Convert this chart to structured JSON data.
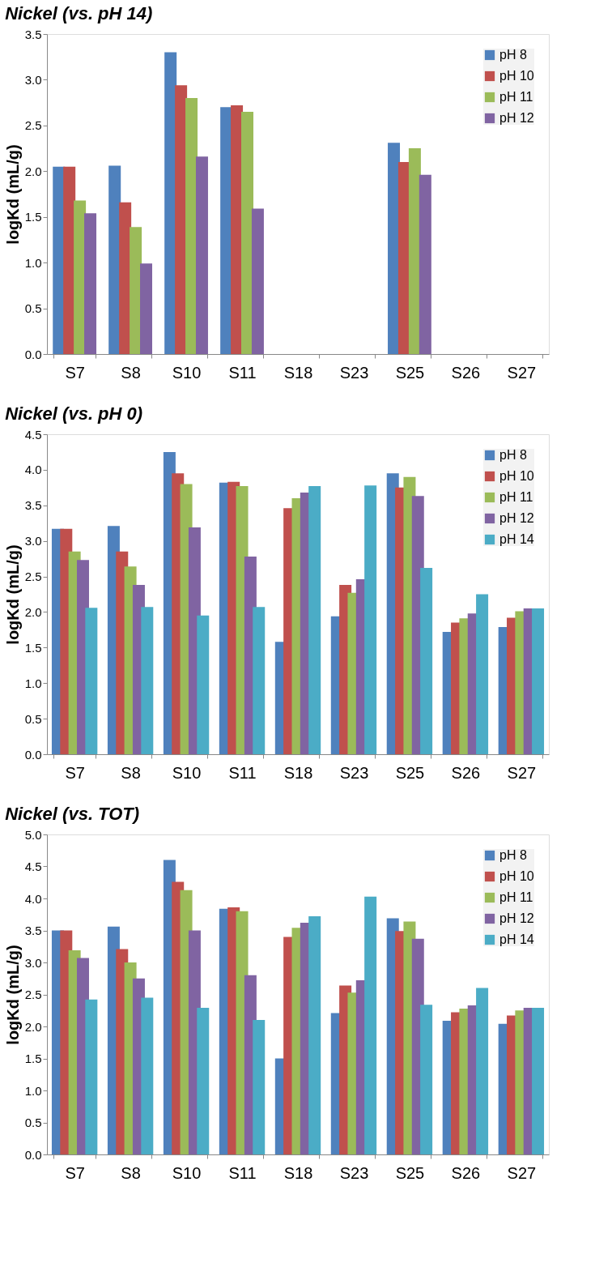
{
  "chart_data": [
    {
      "type": "bar",
      "title": "Nickel (vs. pH 14)",
      "ylabel": "logKd (mL/g)",
      "categories": [
        "S7",
        "S8",
        "S10",
        "S11",
        "S18",
        "S23",
        "S25",
        "S26",
        "S27"
      ],
      "series": [
        {
          "name": "pH 8",
          "color": "#4f81bd",
          "values": [
            2.05,
            2.06,
            3.3,
            2.7,
            null,
            null,
            2.31,
            null,
            null
          ]
        },
        {
          "name": "pH 10",
          "color": "#c0504d",
          "values": [
            2.05,
            1.66,
            2.94,
            2.72,
            null,
            null,
            2.1,
            null,
            null
          ]
        },
        {
          "name": "pH 11",
          "color": "#9bbb59",
          "values": [
            1.68,
            1.39,
            2.8,
            2.65,
            null,
            null,
            2.25,
            null,
            null
          ]
        },
        {
          "name": "pH 12",
          "color": "#8064a2",
          "values": [
            1.54,
            0.99,
            2.16,
            1.59,
            null,
            null,
            1.96,
            null,
            null
          ]
        }
      ],
      "ylim": [
        0,
        3.5
      ],
      "yticks": [
        {
          "value": 0,
          "label": "0.0"
        },
        0.5,
        {
          "value": 1,
          "label": "1.0"
        },
        1.5,
        {
          "value": 2,
          "label": "2.0"
        },
        2.5,
        {
          "value": 3,
          "label": "3.0"
        },
        3.5
      ],
      "legend": "top right",
      "grid": false
    },
    {
      "type": "bar",
      "title": "Nickel (vs. pH 0)",
      "ylabel": "logKd (mL/g)",
      "categories": [
        "S7",
        "S8",
        "S10",
        "S11",
        "S18",
        "S23",
        "S25",
        "S26",
        "S27"
      ],
      "series": [
        {
          "name": "pH 8",
          "color": "#4f81bd",
          "values": [
            3.17,
            3.21,
            4.25,
            3.82,
            1.58,
            1.94,
            3.95,
            1.72,
            1.79
          ]
        },
        {
          "name": "pH 10",
          "color": "#c0504d",
          "values": [
            3.17,
            2.85,
            3.95,
            3.83,
            3.46,
            2.38,
            3.75,
            1.85,
            1.92
          ]
        },
        {
          "name": "pH 11",
          "color": "#9bbb59",
          "values": [
            2.85,
            2.64,
            3.8,
            3.77,
            3.6,
            2.27,
            3.9,
            1.91,
            2.01
          ]
        },
        {
          "name": "pH 12",
          "color": "#8064a2",
          "values": [
            2.73,
            2.38,
            3.19,
            2.78,
            3.68,
            2.46,
            3.63,
            1.98,
            2.05
          ]
        },
        {
          "name": "pH 14",
          "color": "#4bacc6",
          "values": [
            2.06,
            2.07,
            1.95,
            2.07,
            3.77,
            3.78,
            2.62,
            2.25,
            2.05
          ]
        }
      ],
      "ylim": [
        0,
        4.5
      ],
      "yticks": [
        {
          "value": 0,
          "label": "0.0"
        },
        0.5,
        {
          "value": 1,
          "label": "1.0"
        },
        1.5,
        {
          "value": 2,
          "label": "2.0"
        },
        2.5,
        {
          "value": 3,
          "label": "3.0"
        },
        3.5,
        {
          "value": 4,
          "label": "4.0"
        },
        4.5
      ],
      "legend": "top right",
      "grid": false
    },
    {
      "type": "bar",
      "title": "Nickel (vs. TOT)",
      "ylabel": "logKd (mL/g)",
      "categories": [
        "S7",
        "S8",
        "S10",
        "S11",
        "S18",
        "S23",
        "S25",
        "S26",
        "S27"
      ],
      "series": [
        {
          "name": "pH 8",
          "color": "#4f81bd",
          "values": [
            3.5,
            3.56,
            4.6,
            3.84,
            1.5,
            2.21,
            3.69,
            2.09,
            2.04
          ]
        },
        {
          "name": "pH 10",
          "color": "#c0504d",
          "values": [
            3.5,
            3.21,
            4.26,
            3.86,
            3.4,
            2.64,
            3.49,
            2.22,
            2.17
          ]
        },
        {
          "name": "pH 11",
          "color": "#9bbb59",
          "values": [
            3.19,
            3.0,
            4.13,
            3.8,
            3.54,
            2.53,
            3.64,
            2.28,
            2.25
          ]
        },
        {
          "name": "pH 12",
          "color": "#8064a2",
          "values": [
            3.07,
            2.75,
            3.5,
            2.8,
            3.62,
            2.72,
            3.37,
            2.33,
            2.29
          ]
        },
        {
          "name": "pH 14",
          "color": "#4bacc6",
          "values": [
            2.42,
            2.45,
            2.29,
            2.1,
            3.72,
            4.03,
            2.34,
            2.6,
            2.29
          ]
        }
      ],
      "ylim": [
        0,
        5
      ],
      "yticks": [
        {
          "value": 0,
          "label": "0.0"
        },
        0.5,
        {
          "value": 1,
          "label": "1.0"
        },
        1.5,
        {
          "value": 2,
          "label": "2.0"
        },
        2.5,
        {
          "value": 3,
          "label": "3.0"
        },
        3.5,
        {
          "value": 4,
          "label": "4.0"
        },
        4.5,
        {
          "value": 5,
          "label": "5.0"
        }
      ],
      "legend": "top right",
      "grid": false
    }
  ]
}
